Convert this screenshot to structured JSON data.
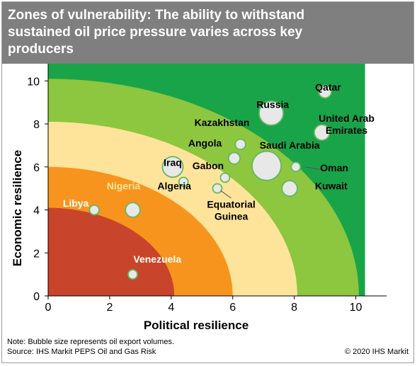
{
  "title": {
    "lines": [
      "Zones of vulnerability: The ability to withstand",
      "sustained oil price pressure varies across key",
      "producers"
    ]
  },
  "footer": {
    "note": "Note: Bubble size represents oil export volumes.",
    "source": "Source: IHS Markit PEPS Oil and Gas Risk",
    "copyright": "© 2020 IHS Markit"
  },
  "colors": {
    "green_dark": "#1aa44a",
    "green_light": "#8dc63f",
    "yellow_light": "#fee49a",
    "orange": "#f7941d",
    "red": "#c8442a",
    "bubble_fill": "#e8e8e8",
    "bubble_stroke": "#6fbf6f"
  },
  "chart_data": {
    "type": "scatter",
    "subtype": "bubble",
    "xlabel": "Political resilience",
    "ylabel": "Economic resilience",
    "xlim": [
      0,
      11
    ],
    "ylim": [
      0,
      10.8
    ],
    "xticks": [
      "0",
      "2",
      "4",
      "6",
      "8",
      "10"
    ],
    "yticks": [
      "0",
      "2",
      "4",
      "6",
      "8",
      "10"
    ],
    "zones": [
      {
        "type": "rectangle",
        "x_max": 10.3,
        "y_max": 10.8,
        "color": "#1aa44a"
      },
      {
        "type": "quarter-circle",
        "radius": 10.1,
        "color": "#8dc63f"
      },
      {
        "type": "quarter-circle",
        "radius": 8.1,
        "color": "#fee49a"
      },
      {
        "type": "quarter-circle",
        "radius": 6.0,
        "color": "#f7941d"
      },
      {
        "type": "quarter-circle",
        "radius": 4.1,
        "color": "#c8442a"
      }
    ],
    "points": [
      {
        "name": "Qatar",
        "x": 9.0,
        "y": 9.5,
        "size": 0.6
      },
      {
        "name": "Russia",
        "x": 7.25,
        "y": 8.5,
        "size": 2.2
      },
      {
        "name": "United Arab Emirates",
        "x": 8.9,
        "y": 7.6,
        "size": 0.9
      },
      {
        "name": "Kazakhstan",
        "x": 6.25,
        "y": 7.05,
        "size": 0.4
      },
      {
        "name": "Angola",
        "x": 6.05,
        "y": 6.4,
        "size": 0.5
      },
      {
        "name": "Saudi Arabia",
        "x": 7.1,
        "y": 6.05,
        "size": 3.2
      },
      {
        "name": "Iraq",
        "x": 4.05,
        "y": 6.0,
        "size": 1.6
      },
      {
        "name": "Gabon",
        "x": 5.75,
        "y": 5.5,
        "size": 0.1
      },
      {
        "name": "Oman",
        "x": 8.05,
        "y": 6.0,
        "size": 0.2
      },
      {
        "name": "Kuwait",
        "x": 7.85,
        "y": 5.0,
        "size": 0.9
      },
      {
        "name": "Algeria",
        "x": 4.4,
        "y": 5.3,
        "size": 0.3
      },
      {
        "name": "Equatorial Guinea",
        "x": 5.5,
        "y": 5.0,
        "size": 0.1
      },
      {
        "name": "Nigeria",
        "x": 2.75,
        "y": 4.0,
        "size": 0.8
      },
      {
        "name": "Libya",
        "x": 1.5,
        "y": 4.0,
        "size": 0.35
      },
      {
        "name": "Venezuela",
        "x": 2.75,
        "y": 1.0,
        "size": 0.3
      }
    ],
    "labels": [
      {
        "text": "Qatar",
        "lines": [
          "Qatar"
        ],
        "color": "#000000",
        "x": 9.1,
        "y": 9.55,
        "anchor": "middle"
      },
      {
        "text": "Russia",
        "lines": [
          "Russia"
        ],
        "color": "#000000",
        "x": 7.3,
        "y": 8.75,
        "anchor": "middle"
      },
      {
        "text": "United Arab Emirates",
        "lines": [
          "United Arab",
          "Emirates"
        ],
        "color": "#000000",
        "x": 9.7,
        "y": 8.1,
        "anchor": "middle"
      },
      {
        "text": "Kazakhstan",
        "lines": [
          "Kazakhstan"
        ],
        "color": "#000000",
        "x": 5.65,
        "y": 7.9,
        "anchor": "middle"
      },
      {
        "text": "Angola",
        "lines": [
          "Angola"
        ],
        "color": "#000000",
        "x": 5.1,
        "y": 6.95,
        "anchor": "middle"
      },
      {
        "text": "Saudi Arabia",
        "lines": [
          "Saudi Arabia"
        ],
        "color": "#000000",
        "x": 7.85,
        "y": 6.85,
        "anchor": "middle"
      },
      {
        "text": "Iraq",
        "lines": [
          "Iraq"
        ],
        "color": "#000000",
        "x": 4.05,
        "y": 6.05,
        "anchor": "middle"
      },
      {
        "text": "Gabon",
        "lines": [
          "Gabon"
        ],
        "color": "#000000",
        "x": 5.2,
        "y": 5.9,
        "anchor": "middle"
      },
      {
        "text": "Oman",
        "lines": [
          "Oman"
        ],
        "color": "#000000",
        "x": 9.3,
        "y": 5.8,
        "anchor": "middle"
      },
      {
        "text": "Algeria",
        "lines": [
          "Algeria"
        ],
        "color": "#000000",
        "x": 4.1,
        "y": 4.95,
        "anchor": "middle"
      },
      {
        "text": "Kuwait",
        "lines": [
          "Kuwait"
        ],
        "color": "#000000",
        "x": 9.2,
        "y": 4.95,
        "anchor": "middle"
      },
      {
        "text": "Equatorial Guinea",
        "lines": [
          "Equatorial",
          "Guinea"
        ],
        "color": "#000000",
        "x": 5.95,
        "y": 4.1,
        "anchor": "middle"
      },
      {
        "text": "Nigeria",
        "lines": [
          "Nigeria"
        ],
        "color": "#fee49a",
        "x": 2.45,
        "y": 4.95,
        "anchor": "middle"
      },
      {
        "text": "Libya",
        "lines": [
          "Libya"
        ],
        "color": "#ffffff",
        "x": 0.9,
        "y": 4.15,
        "anchor": "middle"
      },
      {
        "text": "Venezuela",
        "lines": [
          "Venezuela"
        ],
        "color": "#ffffff",
        "x": 3.55,
        "y": 1.55,
        "anchor": "middle"
      }
    ],
    "leaders": [
      {
        "from": [
          8.35,
          6.0
        ],
        "to": [
          9.0,
          5.85
        ]
      },
      {
        "from": [
          5.6,
          4.9
        ],
        "to": [
          5.95,
          4.55
        ]
      }
    ]
  }
}
